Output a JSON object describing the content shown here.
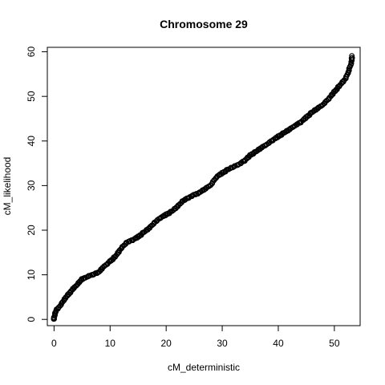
{
  "chart_data": {
    "type": "scatter",
    "title": "Chromosome 29",
    "xlabel": "cM_deterministic",
    "ylabel": "cM_likelihood",
    "xlim": [
      -1.2,
      54.6
    ],
    "ylim": [
      -1.4,
      61.0
    ],
    "xticks": [
      "0",
      "10",
      "20",
      "30",
      "40",
      "50"
    ],
    "yticks": [
      "0",
      "10",
      "20",
      "30",
      "40",
      "50",
      "60"
    ],
    "grid": false,
    "legend": "none",
    "marker": "open-circle",
    "marker_color": "#000000",
    "series": [
      {
        "x": [
          0,
          0,
          0.1,
          0.2,
          0.3,
          0.5,
          0.8,
          1.2,
          1.6,
          2,
          2.5,
          3,
          3.5,
          4,
          4.5,
          5,
          5.5,
          6,
          6.5,
          7,
          7.5,
          8,
          8.5,
          9,
          9.5,
          10,
          11,
          12,
          13,
          14,
          15,
          16,
          17,
          18,
          19,
          20,
          21,
          22,
          23,
          24,
          25,
          26,
          27,
          28,
          29,
          30,
          31,
          32,
          33,
          34,
          35,
          36,
          37,
          38,
          39,
          40,
          41,
          42,
          43,
          44,
          45,
          46,
          47,
          48,
          49,
          50,
          51,
          52,
          52.5,
          53,
          53.2
        ],
        "y": [
          0,
          0.3,
          1,
          1.5,
          1.8,
          2.2,
          2.6,
          3.3,
          4,
          4.8,
          5.5,
          6.3,
          7,
          7.6,
          8.4,
          9,
          9.3,
          9.6,
          9.9,
          10.1,
          10.3,
          10.6,
          11.3,
          12,
          12.5,
          13,
          14.2,
          16,
          17.3,
          17.8,
          18.5,
          19.5,
          20.5,
          21.8,
          22.8,
          23.5,
          24.2,
          25.3,
          26.6,
          27.3,
          27.9,
          28.5,
          29.3,
          30.2,
          32,
          32.8,
          33.6,
          34.2,
          34.8,
          35.6,
          36.8,
          37.6,
          38.5,
          39.3,
          40.2,
          41,
          41.8,
          42.6,
          43.5,
          44.2,
          45.3,
          46.4,
          47.3,
          48.2,
          49.5,
          51,
          52.5,
          54,
          55.5,
          57.5,
          59
        ]
      }
    ]
  }
}
